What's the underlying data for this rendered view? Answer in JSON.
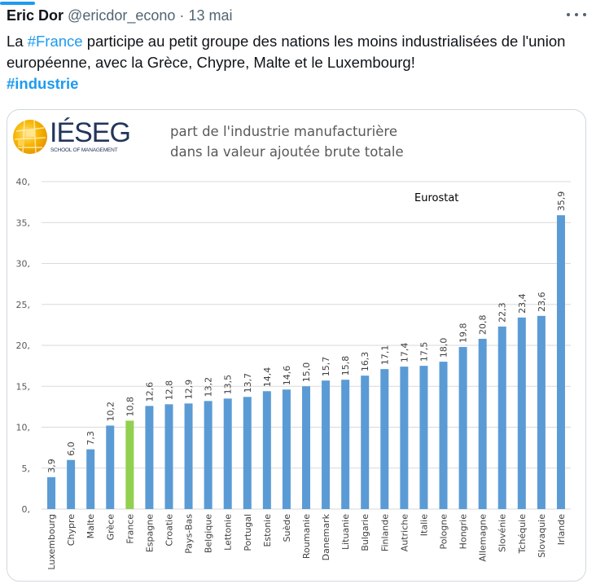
{
  "tweet": {
    "author_name": "Eric Dor",
    "handle": "@ericdor_econo",
    "separator": "·",
    "date": "13 mai",
    "more_icon": "more-horizontal-icon",
    "text_parts": {
      "p1": "La ",
      "hashtag1": "#France",
      "p2": " participe au petit groupe des nations les moins industrialisées de l'union européenne, avec la Grèce, Chypre, Malte et le Luxembourg!",
      "hashtag2": "#industrie"
    },
    "hashtag_color": "#1d9bf0"
  },
  "media": {
    "logo_text": "IÉSEG",
    "logo_subtitle": "SCHOOL OF MANAGEMENT",
    "title_line1": "part de l'industrie manufacturière",
    "title_line2": "dans la valeur ajoutée brute totale"
  },
  "chart_data": {
    "type": "bar",
    "title": "part de l'industrie manufacturière dans la valeur ajoutée brute totale",
    "xlabel": "",
    "ylabel": "",
    "ylim": [
      0,
      40
    ],
    "yticks": [
      0,
      5,
      10,
      15,
      20,
      25,
      30,
      35,
      40
    ],
    "ytick_labels": [
      "0,",
      "5,",
      "10,",
      "15,",
      "20,",
      "25,",
      "30,",
      "35,",
      "40,"
    ],
    "grid": true,
    "annotation": "Eurostat",
    "bar_color": "#5b9bd5",
    "highlight_color": "#92d050",
    "highlight_category": "France",
    "categories": [
      "Luxembourg",
      "Chypre",
      "Malte",
      "Grèce",
      "France",
      "Espagne",
      "Croatie",
      "Pays-Bas",
      "Belgique",
      "Lettonie",
      "Portugal",
      "Estonie",
      "Suède",
      "Roumanie",
      "Danemark",
      "Lituanie",
      "Bulgarie",
      "Finlande",
      "Autriche",
      "Italie",
      "Pologne",
      "Hongrie",
      "Allemagne",
      "Slovénie",
      "Tchéquie",
      "Slovaquie",
      "Irlande"
    ],
    "values": [
      3.9,
      6.0,
      7.3,
      10.2,
      10.8,
      12.6,
      12.8,
      12.9,
      13.2,
      13.5,
      13.7,
      14.4,
      14.6,
      15.0,
      15.7,
      15.8,
      16.3,
      17.1,
      17.4,
      17.5,
      18.0,
      19.8,
      20.8,
      22.3,
      23.4,
      23.6,
      35.9
    ],
    "value_labels": [
      "3,9",
      "6,0",
      "7,3",
      "10,2",
      "10,8",
      "12,6",
      "12,8",
      "12,9",
      "13,2",
      "13,5",
      "13,7",
      "14,4",
      "14,6",
      "15,0",
      "15,7",
      "15,8",
      "16,3",
      "17,1",
      "17,4",
      "17,5",
      "18,0",
      "19,8",
      "20,8",
      "22,3",
      "23,4",
      "23,6",
      "35,9"
    ]
  }
}
